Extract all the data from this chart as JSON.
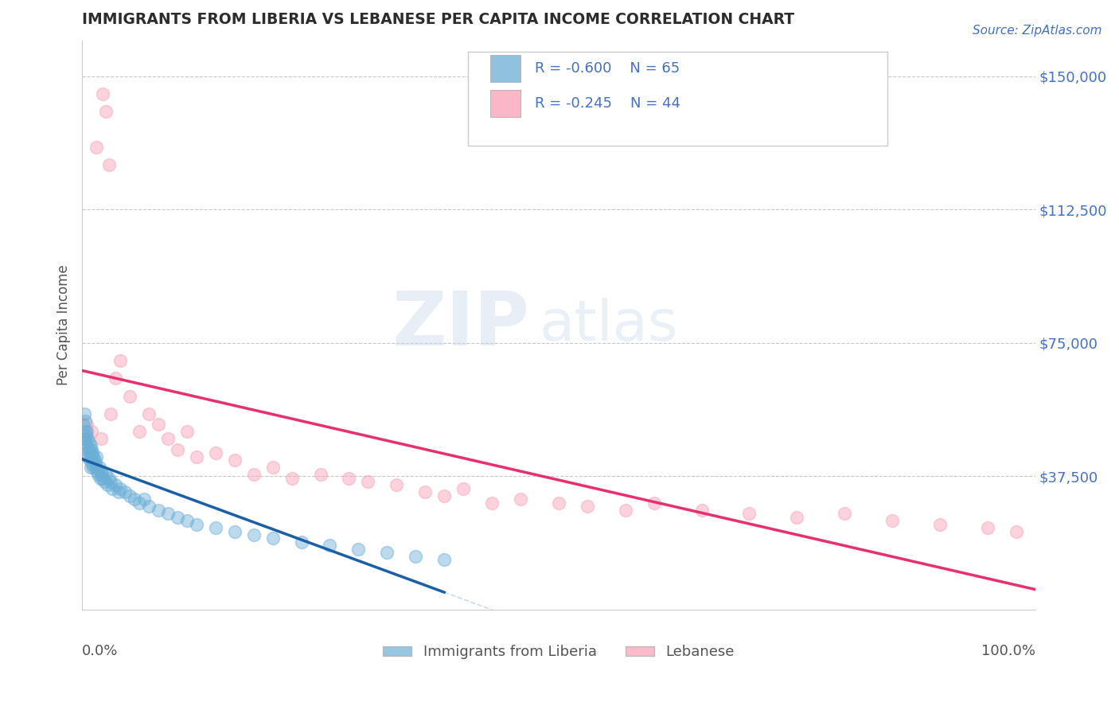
{
  "title": "IMMIGRANTS FROM LIBERIA VS LEBANESE PER CAPITA INCOME CORRELATION CHART",
  "source": "Source: ZipAtlas.com",
  "ylabel": "Per Capita Income",
  "yticks": [
    37500,
    75000,
    112500,
    150000
  ],
  "ytick_labels": [
    "$37,500",
    "$75,000",
    "$112,500",
    "$150,000"
  ],
  "xlim": [
    0,
    100
  ],
  "ylim": [
    0,
    160000
  ],
  "legend_entries": [
    {
      "label": "Immigrants from Liberia",
      "R": "-0.600",
      "N": "65",
      "color": "#aac4e8"
    },
    {
      "label": "Lebanese",
      "R": "-0.245",
      "N": "44",
      "color": "#f4b8c1"
    }
  ],
  "blue_scatter_x": [
    0.1,
    0.2,
    0.2,
    0.3,
    0.3,
    0.3,
    0.4,
    0.4,
    0.5,
    0.5,
    0.6,
    0.6,
    0.7,
    0.7,
    0.8,
    0.8,
    0.9,
    0.9,
    1.0,
    1.0,
    1.1,
    1.1,
    1.2,
    1.2,
    1.3,
    1.4,
    1.5,
    1.5,
    1.6,
    1.7,
    1.8,
    1.9,
    2.0,
    2.1,
    2.2,
    2.3,
    2.5,
    2.7,
    2.8,
    3.0,
    3.2,
    3.5,
    3.8,
    4.0,
    4.5,
    5.0,
    5.5,
    6.0,
    6.5,
    7.0,
    8.0,
    9.0,
    10.0,
    11.0,
    12.0,
    14.0,
    16.0,
    18.0,
    20.0,
    23.0,
    26.0,
    29.0,
    32.0,
    35.0,
    38.0
  ],
  "blue_scatter_y": [
    52000,
    48000,
    55000,
    47000,
    50000,
    53000,
    46000,
    49000,
    44000,
    50000,
    48000,
    43000,
    47000,
    45000,
    44000,
    42000,
    46000,
    40000,
    45000,
    43000,
    44000,
    41000,
    43000,
    40000,
    42000,
    41000,
    40000,
    43000,
    39000,
    38000,
    40000,
    37000,
    39000,
    38000,
    37000,
    36000,
    38000,
    35000,
    37000,
    36000,
    34000,
    35000,
    33000,
    34000,
    33000,
    32000,
    31000,
    30000,
    31000,
    29000,
    28000,
    27000,
    26000,
    25000,
    24000,
    23000,
    22000,
    21000,
    20000,
    19000,
    18000,
    17000,
    16000,
    15000,
    14000
  ],
  "pink_scatter_x": [
    0.5,
    1.0,
    1.5,
    2.0,
    2.2,
    2.5,
    2.8,
    3.0,
    3.5,
    4.0,
    5.0,
    6.0,
    7.0,
    8.0,
    9.0,
    10.0,
    11.0,
    12.0,
    14.0,
    16.0,
    18.0,
    20.0,
    22.0,
    25.0,
    28.0,
    30.0,
    33.0,
    36.0,
    38.0,
    40.0,
    43.0,
    46.0,
    50.0,
    53.0,
    57.0,
    60.0,
    65.0,
    70.0,
    75.0,
    80.0,
    85.0,
    90.0,
    95.0,
    98.0
  ],
  "pink_scatter_y": [
    52000,
    50000,
    130000,
    48000,
    145000,
    140000,
    125000,
    55000,
    65000,
    70000,
    60000,
    50000,
    55000,
    52000,
    48000,
    45000,
    50000,
    43000,
    44000,
    42000,
    38000,
    40000,
    37000,
    38000,
    37000,
    36000,
    35000,
    33000,
    32000,
    34000,
    30000,
    31000,
    30000,
    29000,
    28000,
    30000,
    28000,
    27000,
    26000,
    27000,
    25000,
    24000,
    23000,
    22000
  ],
  "blue_color": "#6baed6",
  "pink_color": "#fa9fb5",
  "blue_line_color": "#1a5fa8",
  "pink_line_color": "#e8306e",
  "blue_line_x_end": 38.0,
  "pink_line_x_end": 100.0,
  "watermark_zip": "ZIP",
  "watermark_atlas": "atlas",
  "title_color": "#2c2c2c",
  "axis_label_color": "#555555",
  "ytick_color": "#4472c4",
  "grid_color": "#c8c8c8",
  "background_color": "#ffffff",
  "legend_text_color": "#4472c4",
  "scatter_size": 130,
  "scatter_alpha": 0.45
}
